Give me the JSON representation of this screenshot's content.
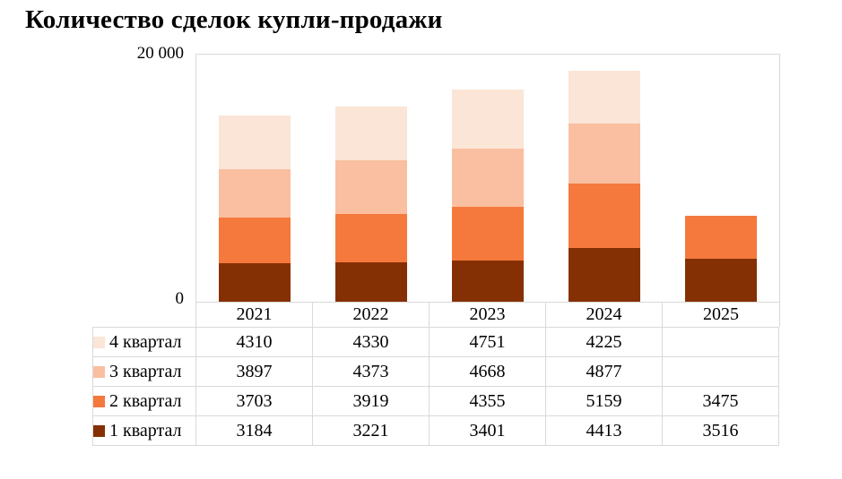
{
  "page": {
    "title": "Количество сделок купли-продажи"
  },
  "axes": {
    "y_top_label": "20 000",
    "y_bottom_label": "0"
  },
  "chart_data": {
    "type": "bar",
    "stacked": true,
    "title": "Количество сделок купли-продажи",
    "categories": [
      "2021",
      "2022",
      "2023",
      "2024",
      "2025"
    ],
    "series": [
      {
        "name": "1 квартал",
        "color": "#853004",
        "values": [
          3184,
          3221,
          3401,
          4413,
          3516
        ]
      },
      {
        "name": "2 квартал",
        "color": "#F5793C",
        "values": [
          3703,
          3919,
          4355,
          5159,
          3475
        ]
      },
      {
        "name": "3 квартал",
        "color": "#F9BFA0",
        "values": [
          3897,
          4373,
          4668,
          4877,
          null
        ]
      },
      {
        "name": "4 квартал",
        "color": "#FBE5D6",
        "values": [
          4310,
          4330,
          4751,
          4225,
          null
        ]
      }
    ],
    "xlabel": "",
    "ylabel": "",
    "ylim": [
      0,
      20000
    ],
    "y_ticks": [
      {
        "value": 20000,
        "label": "20 000"
      },
      {
        "value": 0,
        "label": "0"
      }
    ],
    "grid": false,
    "legend_position": "left-of-data-table",
    "data_table_rows": [
      {
        "label": "4 квартал",
        "color": "#FBE5D6",
        "cells": [
          "4310",
          "4330",
          "4751",
          "4225",
          ""
        ]
      },
      {
        "label": "3 квартал",
        "color": "#F9BFA0",
        "cells": [
          "3897",
          "4373",
          "4668",
          "4877",
          ""
        ]
      },
      {
        "label": "2 квартал",
        "color": "#F5793C",
        "cells": [
          "3703",
          "3919",
          "4355",
          "5159",
          "3475"
        ]
      },
      {
        "label": "1 квартал",
        "color": "#853004",
        "cells": [
          "3184",
          "3221",
          "3401",
          "4413",
          "3516"
        ]
      }
    ]
  }
}
